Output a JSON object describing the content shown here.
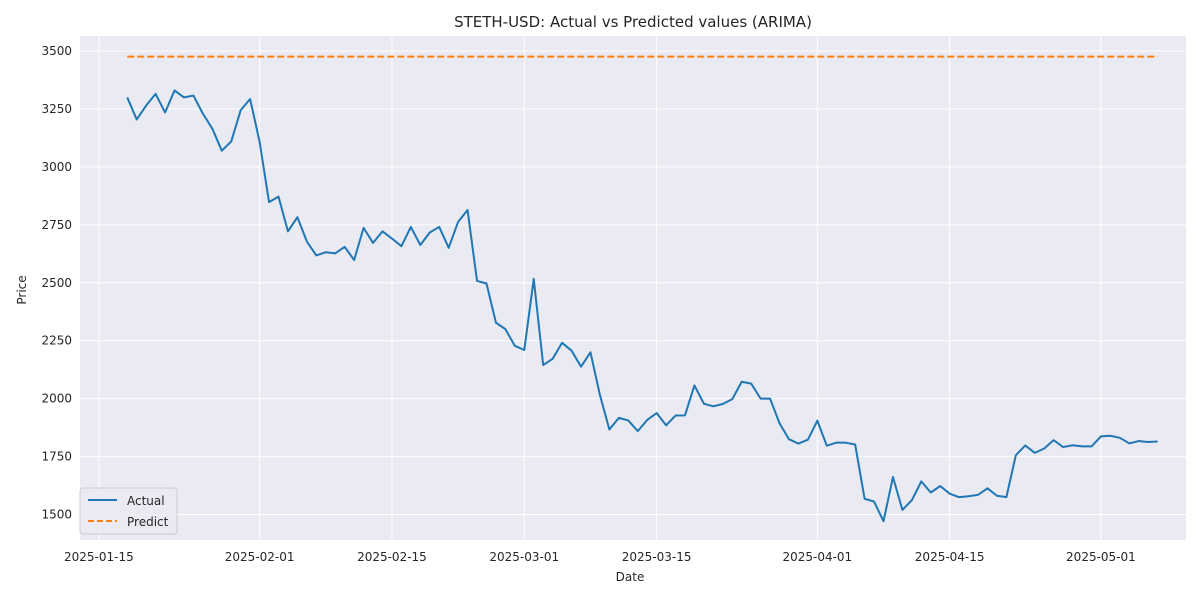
{
  "chart_data": {
    "type": "line",
    "title": "STETH-USD: Actual vs Predicted values (ARIMA)",
    "xlabel": "Date",
    "ylabel": "Price",
    "x_ticks": [
      "2025-01-15",
      "2025-02-01",
      "2025-02-15",
      "2025-03-01",
      "2025-03-15",
      "2025-04-01",
      "2025-04-15",
      "2025-05-01"
    ],
    "y_ticks": [
      1500,
      1750,
      2000,
      2250,
      2500,
      2750,
      3000,
      3250,
      3500
    ],
    "xlim": [
      "2025-01-13",
      "2025-05-10"
    ],
    "ylim": [
      1390,
      3565
    ],
    "grid": true,
    "legend_position": "lower-left",
    "colors": {
      "background": "#eaeaf2",
      "grid": "#ffffff",
      "actual": "#1f77b4",
      "predict": "#ff7f0e"
    },
    "series": [
      {
        "name": "Actual",
        "style": "solid",
        "start_date": "2025-01-18",
        "values": [
          3300,
          3205,
          3265,
          3315,
          3235,
          3330,
          3300,
          3308,
          3230,
          3165,
          3070,
          3110,
          3245,
          3293,
          3108,
          2848,
          2872,
          2722,
          2783,
          2678,
          2618,
          2632,
          2627,
          2655,
          2598,
          2737,
          2672,
          2722,
          2691,
          2658,
          2741,
          2663,
          2717,
          2741,
          2651,
          2763,
          2814,
          2508,
          2497,
          2328,
          2300,
          2228,
          2210,
          2517,
          2145,
          2172,
          2241,
          2207,
          2138,
          2200,
          2016,
          1867,
          1917,
          1906,
          1860,
          1908,
          1938,
          1885,
          1927,
          1928,
          2057,
          1978,
          1967,
          1977,
          1998,
          2073,
          2065,
          2000,
          2000,
          1894,
          1825,
          1806,
          1823,
          1905,
          1797,
          1810,
          1810,
          1802,
          1568,
          1556,
          1471,
          1662,
          1520,
          1562,
          1643,
          1595,
          1623,
          1590,
          1575,
          1579,
          1585,
          1613,
          1581,
          1575,
          1756,
          1798,
          1766,
          1785,
          1821,
          1791,
          1799,
          1794,
          1794,
          1837,
          1840,
          1831,
          1807,
          1817,
          1813,
          1815
        ]
      },
      {
        "name": "Predict",
        "style": "dashed",
        "start_date": "2025-01-18",
        "end_date": "2025-05-07",
        "value": 3476
      }
    ]
  }
}
